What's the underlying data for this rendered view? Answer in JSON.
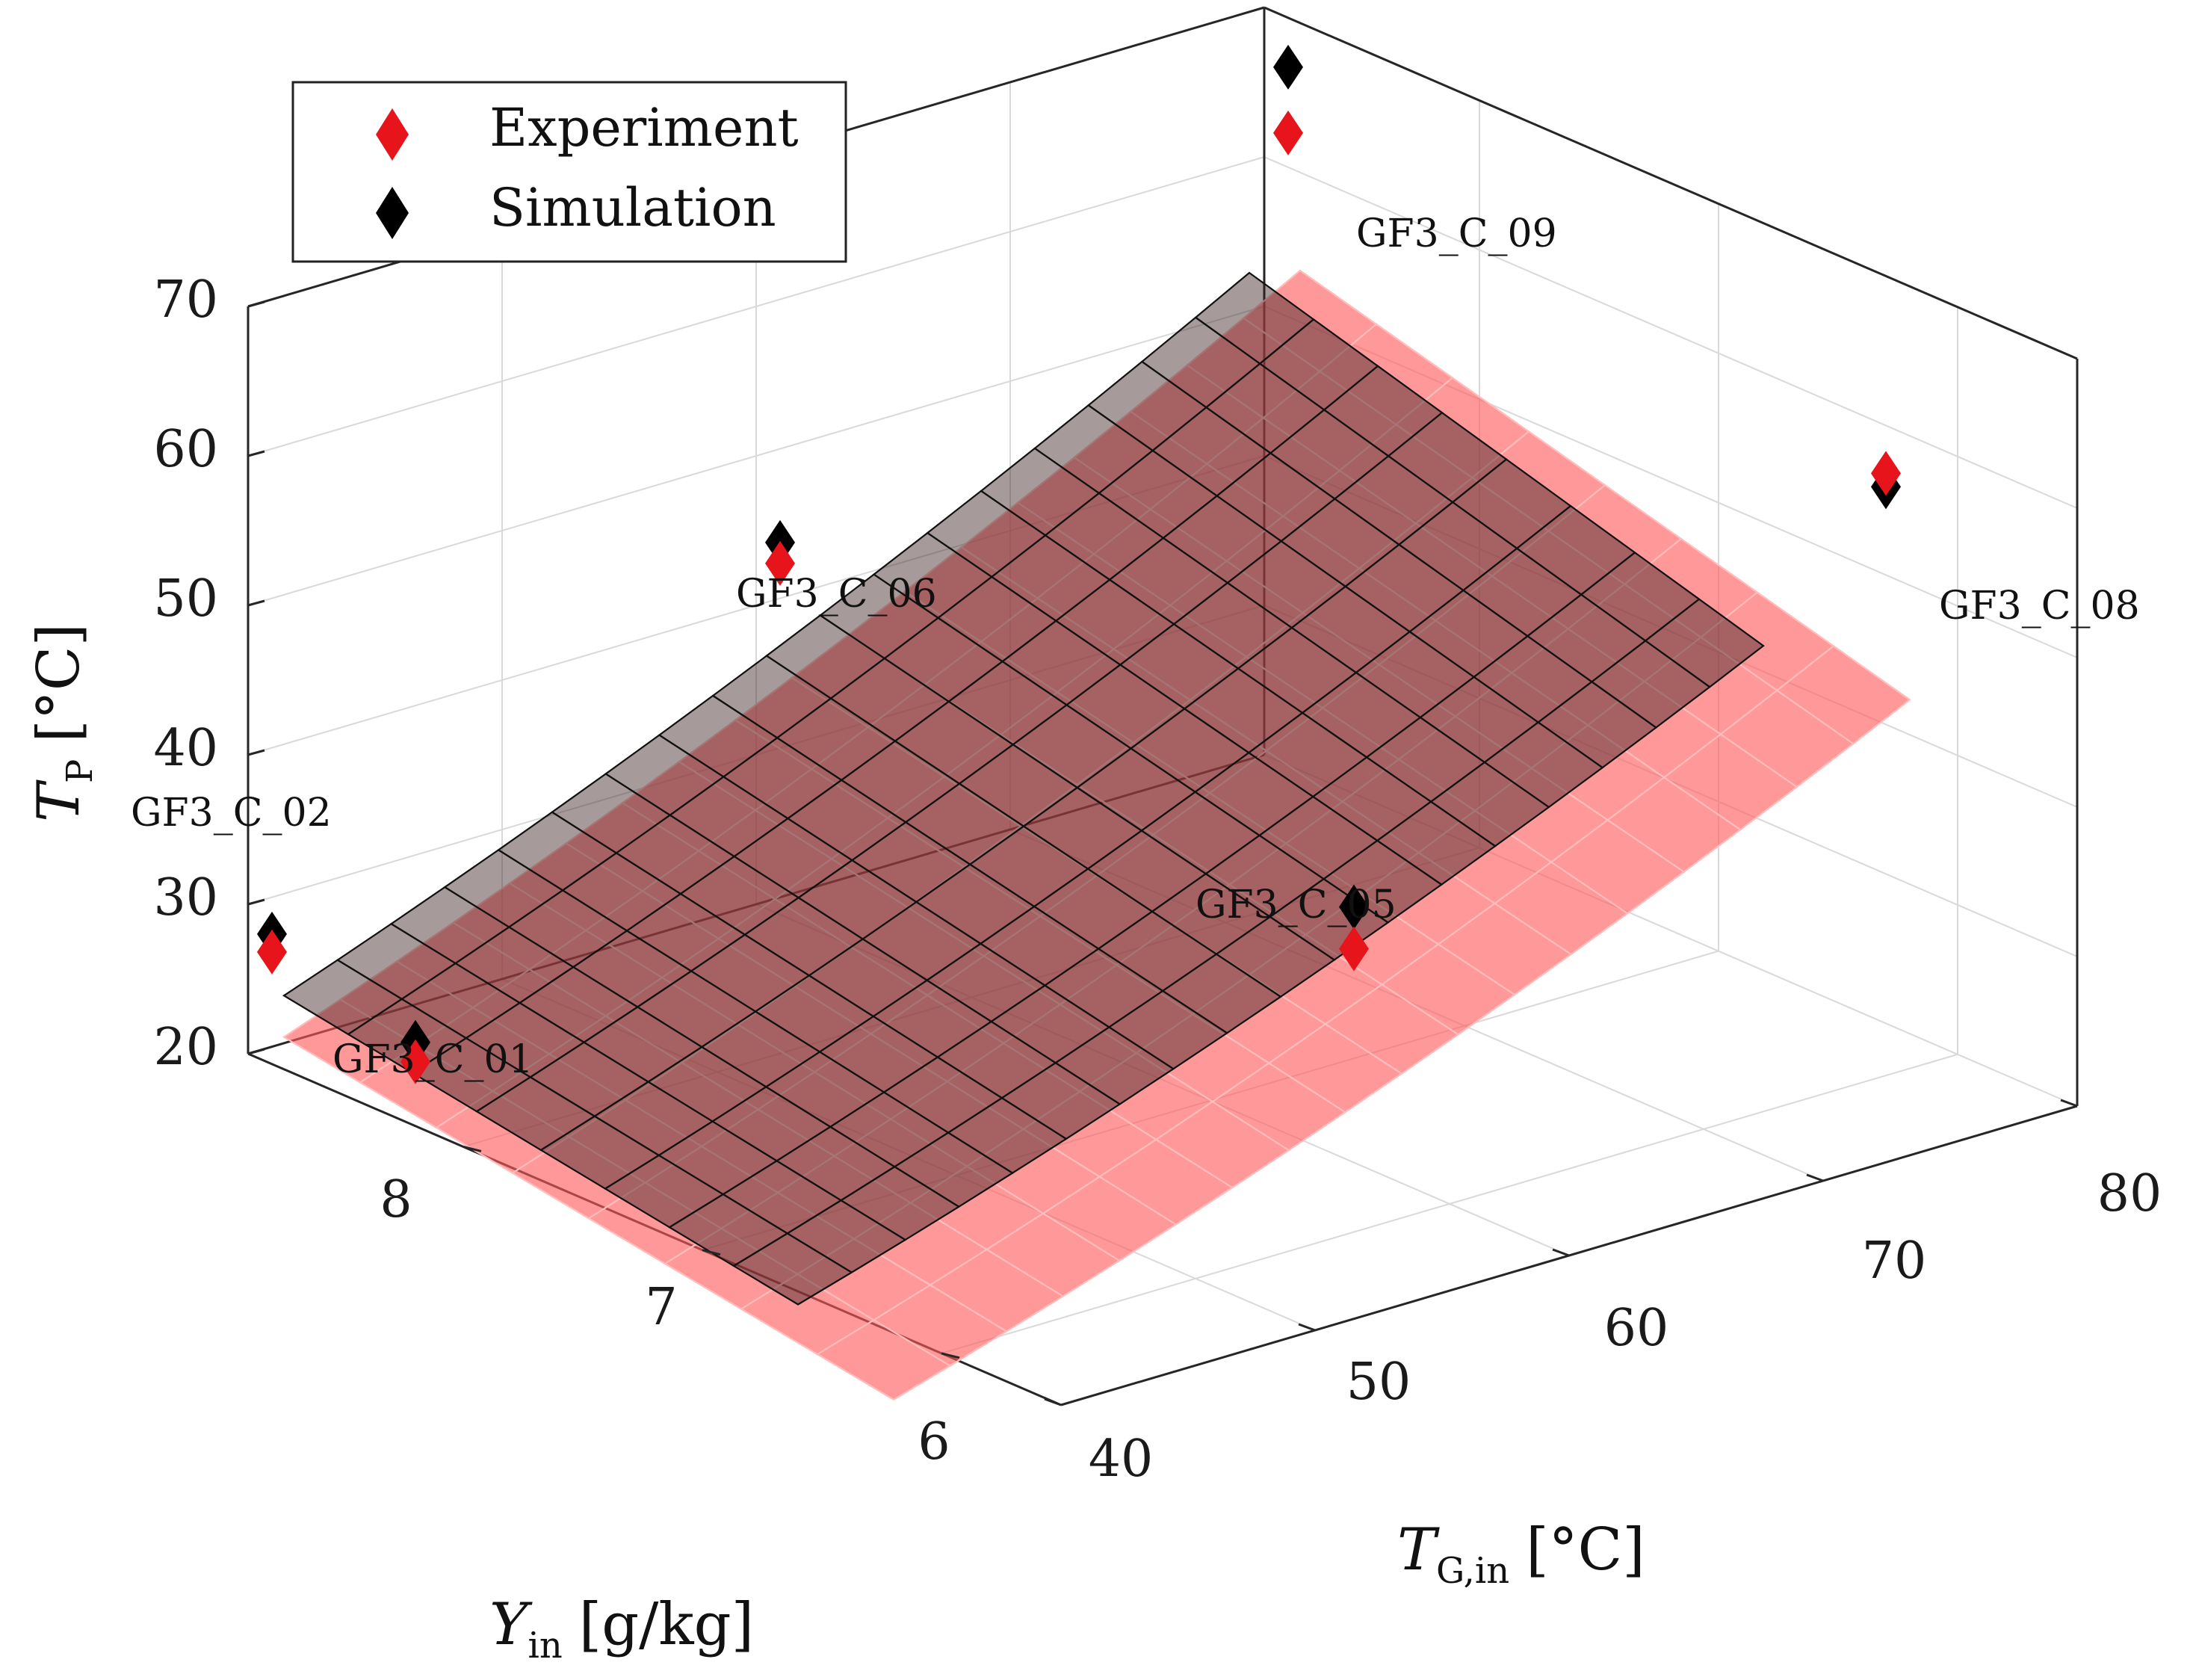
{
  "chart_data": {
    "type": "surface3d",
    "title": "",
    "z_label": {
      "main": "T",
      "sub": "P",
      "unit": "[°C]"
    },
    "x_label": {
      "main": "T",
      "sub": "G,in",
      "unit": "[°C]"
    },
    "y_label": {
      "main": "Y",
      "sub": "in",
      "unit": "[g/kg]"
    },
    "z_ticks": [
      "20",
      "30",
      "40",
      "50",
      "60",
      "70"
    ],
    "x_ticks": [
      "40",
      "50",
      "60",
      "70",
      "80"
    ],
    "y_ticks": [
      "6",
      "7",
      "8"
    ],
    "z_range": [
      20,
      70
    ],
    "x_range": [
      40,
      80
    ],
    "y_range": [
      5.5,
      8.9
    ],
    "legend": {
      "position": "top-left",
      "entries": [
        {
          "label": "Experiment",
          "color": "#e8141b"
        },
        {
          "label": "Simulation",
          "color": "#000000"
        }
      ]
    },
    "colors": {
      "experiment_surface": "#ff5a5a",
      "simulation_surface": "#202020",
      "mesh": "#111111"
    },
    "points": [
      {
        "name": "GF3_C_01",
        "T_G_in": 40,
        "Y_in": 8.2,
        "experiment": 24.3,
        "simulation": 25.6
      },
      {
        "name": "GF3_C_02",
        "T_G_in": 40,
        "Y_in": 8.8,
        "experiment": 27.5,
        "simulation": 28.7
      },
      {
        "name": "GF3_C_05",
        "T_G_in": 60,
        "Y_in": 6.4,
        "experiment": 34.3,
        "simulation": 37.1
      },
      {
        "name": "GF3_C_06",
        "T_G_in": 60,
        "Y_in": 8.8,
        "experiment": 43.5,
        "simulation": 44.9
      },
      {
        "name": "GF3_C_08",
        "T_G_in": 80,
        "Y_in": 6.3,
        "experiment": 56.8,
        "simulation": 55.9
      },
      {
        "name": "GF3_C_09",
        "T_G_in": 80,
        "Y_in": 8.8,
        "experiment": 62.3,
        "simulation": 66.7
      }
    ]
  }
}
